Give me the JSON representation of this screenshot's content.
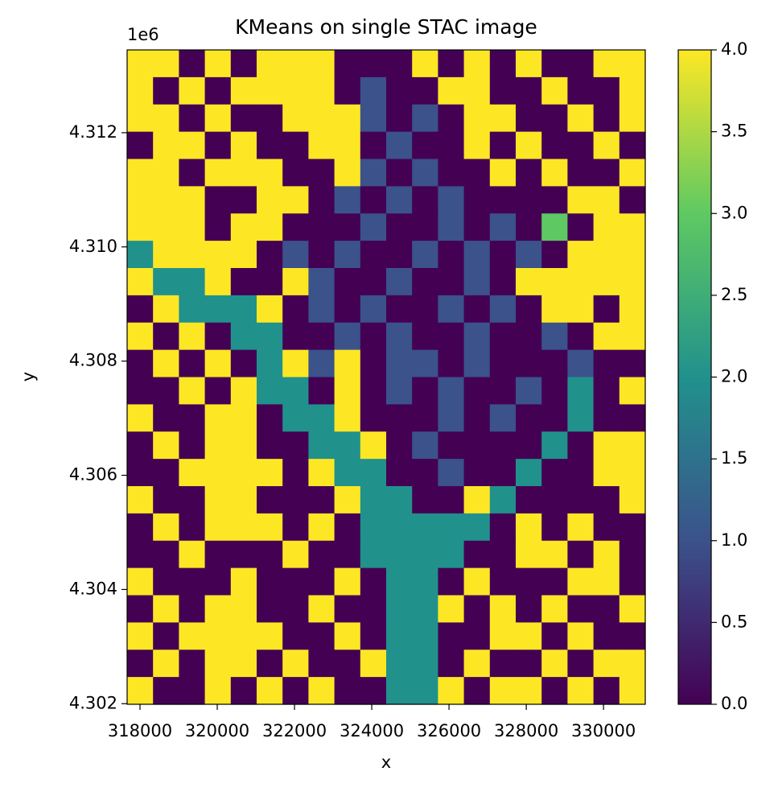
{
  "chart_data": {
    "type": "heatmap",
    "title": "KMeans on single STAC image",
    "x_label": "x",
    "y_label": "y",
    "y_offset_label": "1e6",
    "xlim": [
      317667,
      331080
    ],
    "ylim": [
      4301990,
      4313450
    ],
    "xticks": [
      318000,
      320000,
      322000,
      324000,
      326000,
      328000,
      330000
    ],
    "yticks": [
      {
        "value": 4302000,
        "label": "4.302"
      },
      {
        "value": 4304000,
        "label": "4.304"
      },
      {
        "value": 4306000,
        "label": "4.306"
      },
      {
        "value": 4308000,
        "label": "4.308"
      },
      {
        "value": 4310000,
        "label": "4.310"
      },
      {
        "value": 4312000,
        "label": "4.312"
      }
    ],
    "colormap": "viridis",
    "colors": [
      "#440154",
      "#3b528b",
      "#21918c",
      "#5ec962",
      "#fde725"
    ],
    "clim": [
      0,
      4
    ],
    "cticks": [
      {
        "value": 0,
        "label": "0.0"
      },
      0.5,
      {
        "value": 1,
        "label": "1.0"
      },
      1.5,
      {
        "value": 2,
        "label": "2.0"
      },
      2.5,
      {
        "value": 3,
        "label": "3.0"
      },
      3.5,
      {
        "value": 4,
        "label": "4.0"
      }
    ],
    "z": [
      [
        4,
        4,
        0,
        4,
        0,
        4,
        4,
        4,
        0,
        0,
        0,
        4,
        0,
        4,
        0,
        4,
        0,
        0,
        4,
        4
      ],
      [
        4,
        0,
        4,
        0,
        4,
        4,
        4,
        4,
        0,
        1,
        0,
        0,
        4,
        4,
        0,
        0,
        4,
        0,
        0,
        4
      ],
      [
        4,
        4,
        0,
        4,
        0,
        0,
        4,
        4,
        4,
        1,
        0,
        1,
        0,
        4,
        4,
        0,
        0,
        4,
        0,
        4
      ],
      [
        0,
        4,
        4,
        0,
        4,
        0,
        0,
        4,
        4,
        0,
        1,
        0,
        0,
        4,
        0,
        4,
        0,
        0,
        4,
        0
      ],
      [
        4,
        4,
        0,
        4,
        4,
        4,
        0,
        0,
        4,
        1,
        0,
        1,
        0,
        0,
        4,
        0,
        4,
        0,
        0,
        4
      ],
      [
        4,
        4,
        4,
        0,
        0,
        4,
        4,
        0,
        1,
        0,
        1,
        0,
        1,
        0,
        0,
        0,
        0,
        4,
        4,
        0
      ],
      [
        4,
        4,
        4,
        0,
        4,
        4,
        0,
        0,
        0,
        1,
        0,
        0,
        1,
        0,
        1,
        0,
        3,
        0,
        4,
        4
      ],
      [
        2,
        4,
        4,
        4,
        4,
        0,
        1,
        0,
        1,
        0,
        0,
        1,
        0,
        1,
        0,
        1,
        0,
        4,
        4,
        4
      ],
      [
        4,
        2,
        2,
        4,
        0,
        0,
        4,
        1,
        0,
        0,
        1,
        0,
        0,
        1,
        0,
        4,
        4,
        4,
        4,
        4
      ],
      [
        0,
        4,
        2,
        2,
        2,
        4,
        0,
        1,
        0,
        1,
        0,
        0,
        1,
        0,
        1,
        0,
        4,
        4,
        0,
        4
      ],
      [
        4,
        0,
        4,
        0,
        2,
        2,
        0,
        0,
        1,
        0,
        1,
        0,
        0,
        1,
        0,
        0,
        1,
        0,
        4,
        4
      ],
      [
        0,
        4,
        0,
        4,
        0,
        2,
        4,
        1,
        4,
        0,
        1,
        1,
        0,
        1,
        0,
        0,
        0,
        1,
        0,
        0
      ],
      [
        0,
        0,
        4,
        0,
        4,
        2,
        2,
        0,
        4,
        0,
        1,
        0,
        1,
        0,
        0,
        1,
        0,
        2,
        0,
        4
      ],
      [
        4,
        0,
        0,
        4,
        4,
        0,
        2,
        2,
        4,
        0,
        0,
        0,
        1,
        0,
        1,
        0,
        0,
        2,
        0,
        0
      ],
      [
        0,
        4,
        0,
        4,
        4,
        0,
        0,
        2,
        2,
        4,
        0,
        1,
        0,
        0,
        0,
        0,
        2,
        0,
        4,
        4
      ],
      [
        0,
        0,
        4,
        4,
        4,
        4,
        0,
        4,
        2,
        2,
        0,
        0,
        1,
        0,
        0,
        2,
        0,
        0,
        4,
        4
      ],
      [
        4,
        0,
        0,
        4,
        4,
        0,
        0,
        0,
        4,
        2,
        2,
        0,
        0,
        4,
        2,
        0,
        0,
        0,
        0,
        4
      ],
      [
        0,
        4,
        0,
        4,
        4,
        4,
        0,
        4,
        0,
        2,
        2,
        2,
        2,
        2,
        0,
        4,
        0,
        4,
        0,
        0
      ],
      [
        0,
        0,
        4,
        0,
        0,
        0,
        4,
        0,
        0,
        2,
        2,
        2,
        2,
        0,
        0,
        4,
        4,
        0,
        4,
        0
      ],
      [
        4,
        0,
        0,
        0,
        4,
        0,
        0,
        0,
        4,
        0,
        2,
        2,
        0,
        4,
        0,
        0,
        0,
        4,
        4,
        0
      ],
      [
        0,
        4,
        0,
        4,
        4,
        0,
        0,
        4,
        0,
        0,
        2,
        2,
        4,
        0,
        4,
        0,
        4,
        0,
        0,
        4
      ],
      [
        4,
        0,
        4,
        4,
        4,
        4,
        0,
        0,
        4,
        0,
        2,
        2,
        0,
        0,
        4,
        4,
        0,
        4,
        0,
        0
      ],
      [
        0,
        4,
        0,
        4,
        4,
        0,
        4,
        0,
        0,
        4,
        2,
        2,
        0,
        4,
        0,
        0,
        4,
        0,
        4,
        4
      ],
      [
        4,
        0,
        0,
        4,
        0,
        4,
        0,
        4,
        0,
        0,
        2,
        2,
        4,
        0,
        4,
        4,
        0,
        4,
        0,
        4
      ]
    ]
  }
}
